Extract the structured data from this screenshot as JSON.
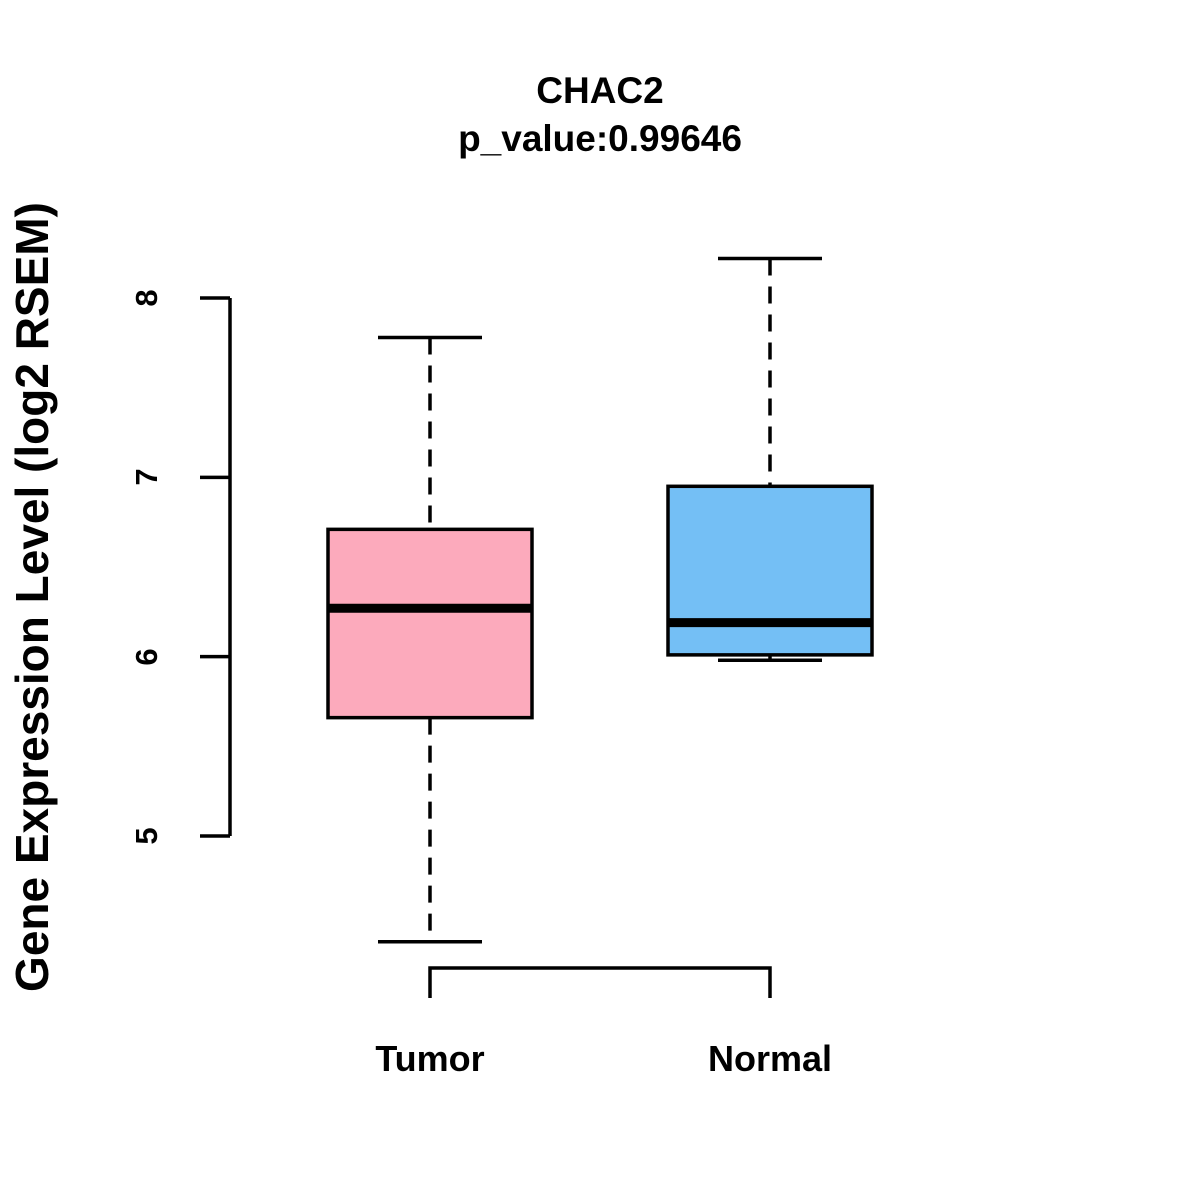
{
  "title": "CHAC2",
  "subtitle": "p_value:0.99646",
  "chart_data": {
    "type": "boxplot",
    "title": "CHAC2",
    "subtitle": "p_value:0.99646",
    "xlabel": "",
    "ylabel": "Gene Expression Level (log2 RSEM)",
    "categories": [
      "Tumor",
      "Normal"
    ],
    "y_ticks": [
      5,
      6,
      7,
      8
    ],
    "ylim": [
      4.2,
      8.5
    ],
    "grid": false,
    "legend": "none",
    "boxes": [
      {
        "category": "Tumor",
        "color": "#FCAABC",
        "whisker_low": 4.41,
        "q1": 5.66,
        "median": 6.27,
        "q3": 6.71,
        "whisker_high": 7.78
      },
      {
        "category": "Normal",
        "color": "#74BFF5",
        "whisker_low": 5.98,
        "q1": 6.01,
        "median": 6.19,
        "q3": 6.95,
        "whisker_high": 8.22
      }
    ],
    "colors": {
      "tumor_fill": "#FCAABC",
      "normal_fill": "#74BFF5",
      "stroke": "#000000",
      "background": "#FFFFFF"
    }
  }
}
